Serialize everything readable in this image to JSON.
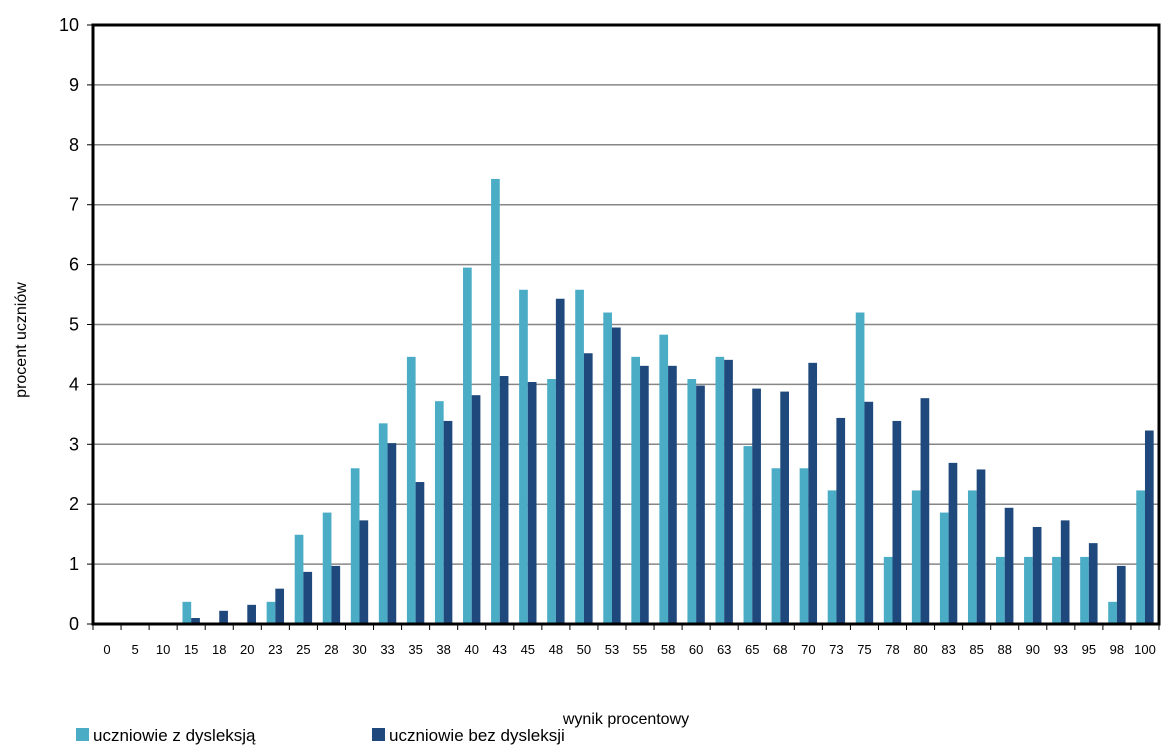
{
  "chart_data": {
    "type": "bar",
    "title": "",
    "xlabel": "wynik procentowy",
    "ylabel": "procent uczniów",
    "ylim": [
      0,
      10
    ],
    "yticks": [
      "0",
      "1",
      "2",
      "3",
      "4",
      "5",
      "6",
      "7",
      "8",
      "9",
      "10"
    ],
    "grid": true,
    "legend_position": "bottom-left",
    "categories": [
      "0",
      "5",
      "10",
      "15",
      "18",
      "20",
      "23",
      "25",
      "28",
      "30",
      "33",
      "35",
      "38",
      "40",
      "43",
      "45",
      "48",
      "50",
      "53",
      "55",
      "58",
      "60",
      "63",
      "65",
      "68",
      "70",
      "73",
      "75",
      "78",
      "80",
      "83",
      "85",
      "88",
      "90",
      "93",
      "95",
      "98",
      "100"
    ],
    "series": [
      {
        "name": "uczniowie z dysleksją",
        "color": "#4bacc6",
        "values": [
          0,
          0,
          0,
          0.37,
          0,
          0,
          0.37,
          1.49,
          1.86,
          2.6,
          3.35,
          4.46,
          3.72,
          5.95,
          7.43,
          5.58,
          4.09,
          5.58,
          5.2,
          4.46,
          4.83,
          4.09,
          4.46,
          2.97,
          2.6,
          2.6,
          2.23,
          5.2,
          1.12,
          2.23,
          1.86,
          2.23,
          1.12,
          1.12,
          1.12,
          1.12,
          0.37,
          2.23
        ]
      },
      {
        "name": "uczniowie bez dysleksji",
        "color": "#1f497d",
        "values": [
          0,
          0,
          0,
          0.1,
          0.22,
          0.32,
          0.59,
          0.87,
          0.97,
          1.73,
          3.02,
          2.37,
          3.39,
          3.82,
          4.14,
          4.04,
          5.43,
          4.52,
          4.95,
          4.31,
          4.31,
          3.98,
          4.41,
          3.93,
          3.88,
          4.36,
          3.44,
          3.71,
          3.39,
          3.77,
          2.69,
          2.58,
          1.94,
          1.62,
          1.73,
          1.35,
          0.97,
          3.23
        ]
      }
    ]
  }
}
